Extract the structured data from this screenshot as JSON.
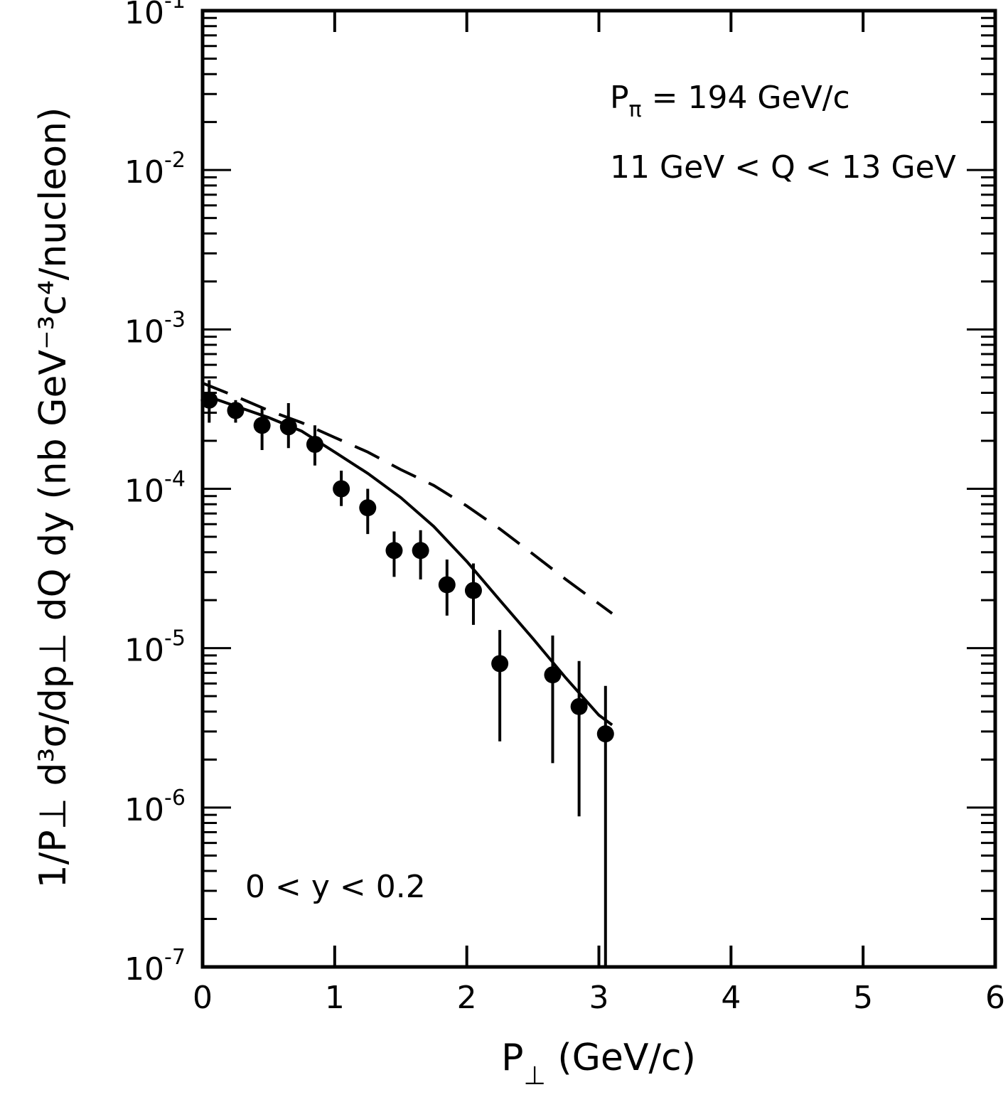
{
  "chart_data": {
    "type": "scatter",
    "x_scale": "linear",
    "y_scale": "log",
    "xlim": [
      0,
      6
    ],
    "ylim": [
      1e-07,
      0.1
    ],
    "x_ticks": [
      0,
      1,
      2,
      3,
      4,
      5,
      6
    ],
    "x_tick_labels": [
      "0",
      "1",
      "2",
      "3",
      "4",
      "5",
      "6"
    ],
    "y_ticks": [
      1e-07,
      1e-06,
      1e-05,
      0.0001,
      0.001,
      0.01,
      0.1
    ],
    "y_tick_mantissa": "10",
    "y_tick_exponents": [
      "-7",
      "-6",
      "-5",
      "-4",
      "-3",
      "-2",
      "-1"
    ],
    "xlabel": {
      "main": "P",
      "sub": "⊥",
      "units": "(GeV/c)"
    },
    "ylabel": "1/P⊥ d³σ/dp⊥ dQ dy (nb GeV⁻³c⁴/nucleon)",
    "annotations": {
      "beam": "Pπ = 194 GeV/c",
      "q_range": "11 GeV < Q < 13 GeV",
      "y_range": "0 < y < 0.2"
    },
    "series": [
      {
        "style": "points",
        "points": [
          {
            "x": 0.05,
            "y": 0.00036,
            "lo": 0.00026,
            "hi": 0.00048
          },
          {
            "x": 0.25,
            "y": 0.00031,
            "lo": 0.00026,
            "hi": 0.00036
          },
          {
            "x": 0.45,
            "y": 0.00025,
            "lo": 0.000175,
            "hi": 0.00032
          },
          {
            "x": 0.65,
            "y": 0.000245,
            "lo": 0.00018,
            "hi": 0.000345
          },
          {
            "x": 0.85,
            "y": 0.00019,
            "lo": 0.00014,
            "hi": 0.00025
          },
          {
            "x": 1.05,
            "y": 0.0001,
            "lo": 7.8e-05,
            "hi": 0.00013
          },
          {
            "x": 1.25,
            "y": 7.6e-05,
            "lo": 5.2e-05,
            "hi": 0.0001
          },
          {
            "x": 1.45,
            "y": 4.1e-05,
            "lo": 2.8e-05,
            "hi": 5.4e-05
          },
          {
            "x": 1.65,
            "y": 4.1e-05,
            "lo": 2.7e-05,
            "hi": 5.5e-05
          },
          {
            "x": 1.85,
            "y": 2.5e-05,
            "lo": 1.6e-05,
            "hi": 3.6e-05
          },
          {
            "x": 2.05,
            "y": 2.3e-05,
            "lo": 1.4e-05,
            "hi": 3.4e-05
          },
          {
            "x": 2.25,
            "y": 8e-06,
            "lo": 2.6e-06,
            "hi": 1.3e-05
          },
          {
            "x": 2.65,
            "y": 6.8e-06,
            "lo": 1.9e-06,
            "hi": 1.2e-05
          },
          {
            "x": 2.85,
            "y": 4.3e-06,
            "lo": 8.8e-07,
            "hi": 8.3e-06
          },
          {
            "x": 3.05,
            "y": 2.9e-06,
            "lo": 1e-07,
            "hi": 5.8e-06
          }
        ]
      },
      {
        "style": "solid",
        "x": [
          0,
          0.25,
          0.5,
          0.75,
          1.0,
          1.25,
          1.5,
          1.75,
          2.0,
          2.25,
          2.5,
          2.75,
          3.0,
          3.1
        ],
        "y": [
          0.00039,
          0.00033,
          0.00028,
          0.00023,
          0.00017,
          0.000125,
          8.8e-05,
          5.8e-05,
          3.5e-05,
          2e-05,
          1.15e-05,
          6.5e-06,
          3.8e-06,
          3.3e-06
        ]
      },
      {
        "style": "dashed",
        "x": [
          0,
          0.25,
          0.5,
          0.75,
          1.0,
          1.25,
          1.5,
          1.75,
          2.0,
          2.25,
          2.5,
          2.75,
          3.0,
          3.1
        ],
        "y": [
          0.00046,
          0.00038,
          0.00031,
          0.00026,
          0.00021,
          0.00017,
          0.000132,
          0.000105,
          7.8e-05,
          5.6e-05,
          3.9e-05,
          2.7e-05,
          1.9e-05,
          1.65e-05
        ]
      }
    ]
  }
}
